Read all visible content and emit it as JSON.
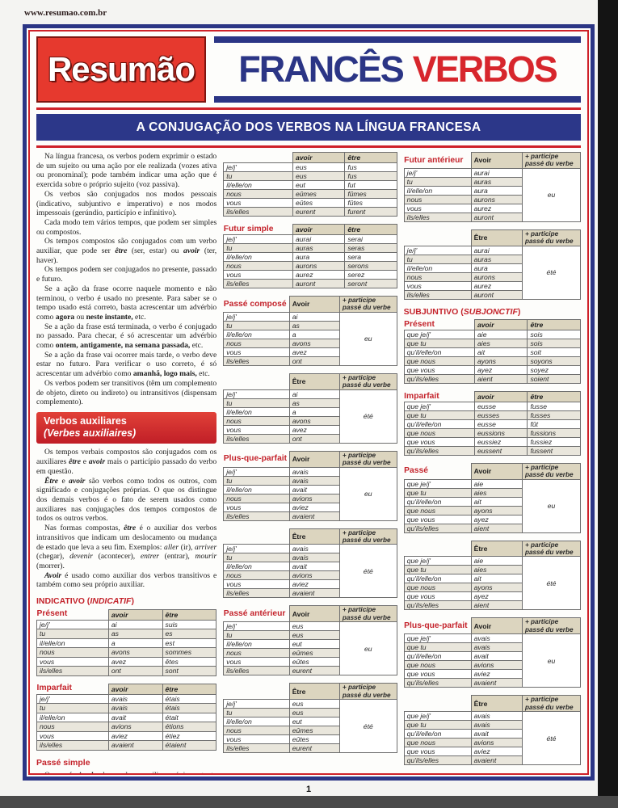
{
  "meta": {
    "url_text": "www.resumao.com.br",
    "page_number": "1"
  },
  "header": {
    "logo": "Resumão",
    "title_main": "FRANCÊS",
    "title_accent": "VERBOS",
    "banner": "A CONJUGAÇÃO DOS VERBOS NA LÍNGUA FRANCESA"
  },
  "colors": {
    "blue": "#2b3585",
    "red": "#cf2129",
    "logo_red": "#e6392e",
    "table_header_beige": "#dcd5bf"
  },
  "pronoun_sets": {
    "ind": [
      "je/j'",
      "tu",
      "il/elle/on",
      "nous",
      "vous",
      "ils/elles"
    ],
    "subj": [
      "que je/j'",
      "que tu",
      "qu'il/elle/on",
      "que nous",
      "que vous",
      "qu'ils/elles"
    ]
  },
  "participle_header": [
    "+ participe",
    "passé du verbe"
  ],
  "left_column": {
    "intro_paragraphs": [
      "Na língua francesa, os verbos podem exprimir o estado de um sujeito ou uma ação por ele realizada (vozes ativa ou pronominal); pode também indicar uma ação que é exercida sobre o próprio sujeito (voz passiva).",
      "Os verbos são conjugados nos modos pessoais (indicativo, subjuntivo e imperativo) e nos modos impessoais (gerúndio, particípio e infinitivo).",
      "Cada modo tem vários tempos, que podem ser simples ou compostos.",
      "Os tempos compostos são conjugados com um verbo auxiliar, que pode ser <b><i>être</i></b> (ser, estar) ou <b><i>avoir</i></b> (ter, haver).",
      "Os tempos podem ser conjugados no presente, passado e futuro.",
      "Se a ação da frase ocorre naquele momento e não terminou, o verbo é usado no presente. Para saber se o tempo usado está correto, basta acrescentar um advérbio como <b>agora</b> ou <b>neste instante,</b> etc.",
      "Se a ação da frase está terminada, o verbo é conjugado no passado. Para checar, é só acrescentar um advérbio como <b>ontem, antigamente, na semana passada,</b> etc.",
      "Se a ação da frase vai ocorrer mais tarde, o verbo deve estar no futuro. Para verificar o uso correto, é só acrescentar um advérbio como <b>amanhã, logo mais,</b> etc.",
      "Os verbos podem ser transitivos (têm um complemento de objeto, direto ou indireto) ou intransitivos (dispensam complemento)."
    ],
    "aux_box_line1": "Verbos auxiliares",
    "aux_box_line2": "(Verbes auxiliaires)",
    "aux_paragraphs": [
      "Os tempos verbais compostos são conjugados com os auxiliares <b><i>être</i></b> e <b><i>avoir</i></b> mais o particípio passado do verbo em questão.",
      "<b><i>Être</i></b> e <b><i>avoir</i></b> são verbos como todos os outros, com significado e conjugações próprias. O que os distingue dos demais verbos é o fato de serem usados como auxiliares nas conjugações dos tempos compostos de todos os outros verbos.",
      "Nas formas compostas, <b><i>être</i></b> é o auxiliar dos verbos intransitivos que indicam um deslocamento ou mudança de estado que leva a seu fim. Exemplos: <i>aller</i> (ir), <i>arriver</i> (chegar), <i>devenir</i> (acontecer), <i>entrer</i> (entrar), <i>mourir</i> (morrer).",
      "<b><i>Avoir</i></b> é usado como auxiliar dos verbos transitivos e também como seu próprio auxiliar."
    ],
    "indicativo_heading": "INDICATIVO (<i>INDICATIF</i>)",
    "tables": [
      {
        "kind": "table",
        "label": "Présent",
        "type": "simple",
        "pronoun_set": "ind",
        "col1": "avoir",
        "col2": "être",
        "rows": [
          [
            "ai",
            "suis"
          ],
          [
            "as",
            "es"
          ],
          [
            "a",
            "est"
          ],
          [
            "avons",
            "sommes"
          ],
          [
            "avez",
            "êtes"
          ],
          [
            "ont",
            "sont"
          ]
        ]
      },
      {
        "kind": "table",
        "label": "Imparfait",
        "type": "simple",
        "pronoun_set": "ind",
        "col1": "avoir",
        "col2": "être",
        "rows": [
          [
            "avais",
            "étais"
          ],
          [
            "avais",
            "étais"
          ],
          [
            "avait",
            "était"
          ],
          [
            "avions",
            "étions"
          ],
          [
            "aviez",
            "étiez"
          ],
          [
            "avaient",
            "étaient"
          ]
        ]
      }
    ],
    "passe_simple_heading": "Passé simple",
    "passe_simple_paragraph": "O <b><i>passé simple</i></b> dos verbos auxiliares é importante porque forma o <b><i>passé antérieur de l'indicatif</i></b> (tempo composto) dos outros verbos. Mas, como ocorre com os demais verbos <b><i>être</i></b> e <b><i>avoir</i></b> no <b><i>passé simple,</i></b> só são usados como verbos propriamente ditos em textos literários."
  },
  "middle_column": {
    "blocks": [
      {
        "kind": "table",
        "label": "",
        "type": "simple",
        "pronoun_set": "ind",
        "col1": "avoir",
        "col2": "être",
        "rows": [
          [
            "eus",
            "fus"
          ],
          [
            "eus",
            "fus"
          ],
          [
            "eut",
            "fut"
          ],
          [
            "eûmes",
            "fûmes"
          ],
          [
            "eûtes",
            "fûtes"
          ],
          [
            "eurent",
            "furent"
          ]
        ]
      },
      {
        "kind": "table",
        "label": "Futur simple",
        "type": "simple",
        "pronoun_set": "ind",
        "col1": "avoir",
        "col2": "être",
        "rows": [
          [
            "aurai",
            "serai"
          ],
          [
            "auras",
            "seras"
          ],
          [
            "aura",
            "sera"
          ],
          [
            "aurons",
            "serons"
          ],
          [
            "aurez",
            "serez"
          ],
          [
            "auront",
            "seront"
          ]
        ]
      },
      {
        "kind": "table",
        "label": "Passé composé",
        "type": "compound",
        "pronoun_set": "ind",
        "col1": "Avoir",
        "participle": "eu",
        "rows": [
          "ai",
          "as",
          "a",
          "avons",
          "avez",
          "ont"
        ]
      },
      {
        "kind": "table",
        "label": "",
        "type": "compound",
        "pronoun_set": "ind",
        "col1": "Être",
        "participle": "été",
        "rows": [
          "ai",
          "as",
          "a",
          "avons",
          "avez",
          "ont"
        ]
      },
      {
        "kind": "table",
        "label": "Plus-que-parfait",
        "type": "compound",
        "pronoun_set": "ind",
        "col1": "Avoir",
        "participle": "eu",
        "rows": [
          "avais",
          "avais",
          "avait",
          "avions",
          "aviez",
          "avaient"
        ]
      },
      {
        "kind": "table",
        "label": "",
        "type": "compound",
        "pronoun_set": "ind",
        "col1": "Être",
        "participle": "été",
        "rows": [
          "avais",
          "avais",
          "avait",
          "avions",
          "aviez",
          "avaient"
        ]
      },
      {
        "kind": "table",
        "label": "Passé antérieur",
        "type": "compound",
        "pronoun_set": "ind",
        "col1": "Avoir",
        "participle": "eu",
        "rows": [
          "eus",
          "eus",
          "eut",
          "eûmes",
          "eûtes",
          "eurent"
        ]
      },
      {
        "kind": "table",
        "label": "",
        "type": "compound",
        "pronoun_set": "ind",
        "col1": "Être",
        "participle": "été",
        "rows": [
          "eus",
          "eus",
          "eut",
          "eûmes",
          "eûtes",
          "eurent"
        ]
      }
    ]
  },
  "right_column": {
    "blocks": [
      {
        "kind": "table",
        "label": "Futur antérieur",
        "type": "compound",
        "pronoun_set": "ind",
        "col1": "Avoir",
        "participle": "eu",
        "rows": [
          "aurai",
          "auras",
          "aura",
          "aurons",
          "aurez",
          "auront"
        ]
      },
      {
        "kind": "table",
        "label": "",
        "type": "compound",
        "pronoun_set": "ind",
        "col1": "Être",
        "participle": "été",
        "rows": [
          "aurai",
          "auras",
          "aura",
          "aurons",
          "aurez",
          "auront"
        ]
      },
      {
        "kind": "heading",
        "html": "SUBJUNTIVO (<i>SUBJONCTIF</i>)"
      },
      {
        "kind": "table",
        "label": "Présent",
        "type": "simple",
        "pronoun_set": "subj",
        "col1": "avoir",
        "col2": "être",
        "rows": [
          [
            "aie",
            "sois"
          ],
          [
            "aies",
            "sois"
          ],
          [
            "ait",
            "soit"
          ],
          [
            "ayons",
            "soyons"
          ],
          [
            "ayez",
            "soyez"
          ],
          [
            "aient",
            "soient"
          ]
        ]
      },
      {
        "kind": "table",
        "label": "Imparfait",
        "type": "simple",
        "pronoun_set": "subj",
        "col1": "avoir",
        "col2": "être",
        "rows": [
          [
            "eusse",
            "fusse"
          ],
          [
            "eusses",
            "fusses"
          ],
          [
            "eusse",
            "fût"
          ],
          [
            "eussions",
            "fussions"
          ],
          [
            "eussiez",
            "fussiez"
          ],
          [
            "eussent",
            "fussent"
          ]
        ]
      },
      {
        "kind": "table",
        "label": "Passé",
        "type": "compound",
        "pronoun_set": "subj",
        "col1": "Avoir",
        "participle": "eu",
        "rows": [
          "aie",
          "aies",
          "ait",
          "ayons",
          "ayez",
          "aient"
        ]
      },
      {
        "kind": "table",
        "label": "",
        "type": "compound",
        "pronoun_set": "subj",
        "col1": "Être",
        "participle": "été",
        "rows": [
          "aie",
          "aies",
          "ait",
          "ayons",
          "ayez",
          "aient"
        ]
      },
      {
        "kind": "table",
        "label": "Plus-que-parfait",
        "type": "compound",
        "pronoun_set": "subj",
        "col1": "Avoir",
        "participle": "eu",
        "rows": [
          "avais",
          "avais",
          "avait",
          "avions",
          "aviez",
          "avaient"
        ]
      },
      {
        "kind": "table",
        "label": "",
        "type": "compound",
        "pronoun_set": "subj",
        "col1": "Être",
        "participle": "été",
        "rows": [
          "avais",
          "avais",
          "avait",
          "avions",
          "aviez",
          "avaient"
        ]
      }
    ]
  }
}
